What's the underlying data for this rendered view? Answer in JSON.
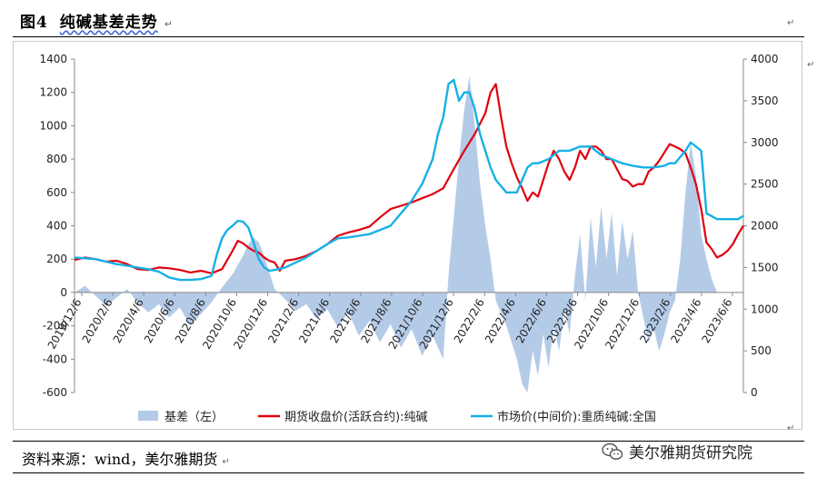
{
  "page": {
    "title_prefix": "图4",
    "title_main": "纯碱基差走势",
    "source": "资料来源：wind，美尔雅期货",
    "watermark": "美尔雅期货研究院",
    "pilcrow": "↵"
  },
  "chart_data": {
    "type": "area+line",
    "title": "",
    "x_ticks": [
      "2019/12/6",
      "2020/2/6",
      "2020/4/6",
      "2020/6/6",
      "2020/8/6",
      "2020/10/6",
      "2020/12/6",
      "2021/2/6",
      "2021/4/6",
      "2021/6/6",
      "2021/8/6",
      "2021/10/6",
      "2021/12/6",
      "2022/2/6",
      "2022/4/6",
      "2022/6/6",
      "2022/8/6",
      "2022/10/6",
      "2022/12/6",
      "2023/2/6",
      "2023/4/6",
      "2023/6/6"
    ],
    "y_left": {
      "min": -600,
      "max": 1400,
      "step": 200
    },
    "y_right": {
      "min": 0,
      "max": 4000,
      "step": 500
    },
    "legend": {
      "position": "bottom"
    },
    "colors": {
      "basis": "#b4cbe8",
      "futures": "#e0000f",
      "spot": "#17b0e6"
    },
    "series": [
      {
        "name": "基差（左）",
        "axis": "left",
        "kind": "area",
        "values": [
          [
            0,
            0
          ],
          [
            2,
            40
          ],
          [
            4,
            -20
          ],
          [
            6,
            -80
          ],
          [
            8,
            -30
          ],
          [
            10,
            20
          ],
          [
            12,
            -60
          ],
          [
            14,
            -120
          ],
          [
            16,
            -70
          ],
          [
            18,
            -150
          ],
          [
            20,
            -90
          ],
          [
            22,
            -200
          ],
          [
            24,
            -130
          ],
          [
            26,
            -60
          ],
          [
            28,
            30
          ],
          [
            30,
            110
          ],
          [
            32,
            220
          ],
          [
            33,
            290
          ],
          [
            34,
            330
          ],
          [
            35,
            300
          ],
          [
            36,
            220
          ],
          [
            37,
            120
          ],
          [
            38,
            20
          ],
          [
            40,
            -40
          ],
          [
            42,
            -110
          ],
          [
            44,
            -70
          ],
          [
            46,
            -160
          ],
          [
            48,
            -100
          ],
          [
            50,
            -210
          ],
          [
            52,
            -120
          ],
          [
            54,
            -260
          ],
          [
            56,
            -170
          ],
          [
            58,
            -300
          ],
          [
            60,
            -190
          ],
          [
            62,
            -330
          ],
          [
            64,
            -220
          ],
          [
            66,
            -380
          ],
          [
            68,
            -260
          ],
          [
            70,
            -400
          ],
          [
            71,
            100
          ],
          [
            72,
            450
          ],
          [
            73,
            800
          ],
          [
            74,
            1100
          ],
          [
            75,
            1300
          ],
          [
            76,
            1000
          ],
          [
            77,
            650
          ],
          [
            78,
            400
          ],
          [
            79,
            200
          ],
          [
            80,
            -50
          ],
          [
            82,
            -200
          ],
          [
            84,
            -400
          ],
          [
            85,
            -550
          ],
          [
            86,
            -600
          ],
          [
            87,
            -350
          ],
          [
            88,
            -500
          ],
          [
            89,
            -250
          ],
          [
            90,
            -450
          ],
          [
            91,
            -200
          ],
          [
            92,
            -350
          ],
          [
            93,
            -100
          ],
          [
            94,
            -250
          ],
          [
            95,
            100
          ],
          [
            96,
            350
          ],
          [
            97,
            -50
          ],
          [
            98,
            450
          ],
          [
            99,
            150
          ],
          [
            100,
            520
          ],
          [
            101,
            200
          ],
          [
            102,
            480
          ],
          [
            103,
            100
          ],
          [
            104,
            430
          ],
          [
            105,
            200
          ],
          [
            106,
            370
          ],
          [
            107,
            0
          ],
          [
            108,
            -150
          ],
          [
            109,
            -300
          ],
          [
            110,
            -220
          ],
          [
            111,
            -350
          ],
          [
            112,
            -250
          ],
          [
            113,
            -120
          ],
          [
            114,
            -50
          ],
          [
            115,
            200
          ],
          [
            116,
            600
          ],
          [
            117,
            900
          ],
          [
            118,
            700
          ],
          [
            119,
            350
          ],
          [
            120,
            200
          ],
          [
            121,
            80
          ],
          [
            122,
            0
          ]
        ]
      },
      {
        "name": "期货收盘价(活跃合约):纯碱",
        "axis": "right",
        "kind": "line",
        "values": [
          [
            0,
            1590
          ],
          [
            2,
            1620
          ],
          [
            4,
            1600
          ],
          [
            6,
            1570
          ],
          [
            8,
            1580
          ],
          [
            10,
            1540
          ],
          [
            12,
            1480
          ],
          [
            14,
            1470
          ],
          [
            16,
            1500
          ],
          [
            18,
            1490
          ],
          [
            20,
            1470
          ],
          [
            22,
            1440
          ],
          [
            24,
            1460
          ],
          [
            26,
            1430
          ],
          [
            28,
            1480
          ],
          [
            30,
            1700
          ],
          [
            31,
            1820
          ],
          [
            32,
            1790
          ],
          [
            33,
            1740
          ],
          [
            34,
            1700
          ],
          [
            35,
            1680
          ],
          [
            36,
            1620
          ],
          [
            37,
            1580
          ],
          [
            38,
            1560
          ],
          [
            39,
            1460
          ],
          [
            40,
            1580
          ],
          [
            42,
            1600
          ],
          [
            44,
            1640
          ],
          [
            46,
            1700
          ],
          [
            48,
            1780
          ],
          [
            50,
            1880
          ],
          [
            52,
            1920
          ],
          [
            54,
            1950
          ],
          [
            56,
            1990
          ],
          [
            58,
            2100
          ],
          [
            60,
            2200
          ],
          [
            62,
            2240
          ],
          [
            64,
            2280
          ],
          [
            66,
            2330
          ],
          [
            68,
            2380
          ],
          [
            70,
            2450
          ],
          [
            72,
            2680
          ],
          [
            74,
            2900
          ],
          [
            76,
            3100
          ],
          [
            78,
            3350
          ],
          [
            79,
            3600
          ],
          [
            80,
            3700
          ],
          [
            81,
            3300
          ],
          [
            82,
            2950
          ],
          [
            83,
            2750
          ],
          [
            84,
            2580
          ],
          [
            85,
            2450
          ],
          [
            86,
            2300
          ],
          [
            87,
            2400
          ],
          [
            88,
            2350
          ],
          [
            89,
            2550
          ],
          [
            90,
            2750
          ],
          [
            91,
            2900
          ],
          [
            92,
            2800
          ],
          [
            93,
            2650
          ],
          [
            94,
            2550
          ],
          [
            95,
            2700
          ],
          [
            96,
            2900
          ],
          [
            97,
            2800
          ],
          [
            98,
            2950
          ],
          [
            99,
            2950
          ],
          [
            100,
            2900
          ],
          [
            101,
            2800
          ],
          [
            102,
            2800
          ],
          [
            103,
            2680
          ],
          [
            104,
            2560
          ],
          [
            105,
            2540
          ],
          [
            106,
            2470
          ],
          [
            107,
            2500
          ],
          [
            108,
            2500
          ],
          [
            109,
            2650
          ],
          [
            110,
            2700
          ],
          [
            111,
            2780
          ],
          [
            112,
            2880
          ],
          [
            113,
            2980
          ],
          [
            114,
            2950
          ],
          [
            115,
            2920
          ],
          [
            116,
            2870
          ],
          [
            117,
            2700
          ],
          [
            118,
            2500
          ],
          [
            119,
            2200
          ],
          [
            120,
            1800
          ],
          [
            121,
            1720
          ],
          [
            122,
            1620
          ],
          [
            123,
            1650
          ],
          [
            124,
            1700
          ],
          [
            125,
            1780
          ],
          [
            126,
            1900
          ],
          [
            127,
            2000
          ]
        ]
      },
      {
        "name": "市场价(中间价):重质纯碱:全国",
        "axis": "right",
        "kind": "line",
        "values": [
          [
            0,
            1620
          ],
          [
            2,
            1610
          ],
          [
            4,
            1600
          ],
          [
            6,
            1570
          ],
          [
            8,
            1540
          ],
          [
            10,
            1520
          ],
          [
            12,
            1500
          ],
          [
            14,
            1480
          ],
          [
            16,
            1450
          ],
          [
            18,
            1380
          ],
          [
            20,
            1350
          ],
          [
            22,
            1350
          ],
          [
            24,
            1360
          ],
          [
            26,
            1400
          ],
          [
            27,
            1650
          ],
          [
            28,
            1850
          ],
          [
            29,
            1950
          ],
          [
            30,
            2000
          ],
          [
            31,
            2060
          ],
          [
            32,
            2050
          ],
          [
            33,
            1980
          ],
          [
            34,
            1800
          ],
          [
            35,
            1600
          ],
          [
            36,
            1500
          ],
          [
            37,
            1460
          ],
          [
            38,
            1470
          ],
          [
            40,
            1500
          ],
          [
            42,
            1560
          ],
          [
            44,
            1620
          ],
          [
            46,
            1700
          ],
          [
            48,
            1780
          ],
          [
            50,
            1850
          ],
          [
            52,
            1860
          ],
          [
            54,
            1880
          ],
          [
            56,
            1900
          ],
          [
            58,
            1950
          ],
          [
            60,
            2000
          ],
          [
            62,
            2150
          ],
          [
            64,
            2300
          ],
          [
            66,
            2500
          ],
          [
            68,
            2800
          ],
          [
            69,
            3100
          ],
          [
            70,
            3300
          ],
          [
            71,
            3700
          ],
          [
            72,
            3750
          ],
          [
            73,
            3500
          ],
          [
            74,
            3600
          ],
          [
            75,
            3600
          ],
          [
            76,
            3400
          ],
          [
            77,
            3100
          ],
          [
            78,
            2900
          ],
          [
            79,
            2700
          ],
          [
            80,
            2550
          ],
          [
            82,
            2400
          ],
          [
            84,
            2400
          ],
          [
            85,
            2550
          ],
          [
            86,
            2700
          ],
          [
            87,
            2750
          ],
          [
            88,
            2750
          ],
          [
            90,
            2800
          ],
          [
            92,
            2900
          ],
          [
            94,
            2900
          ],
          [
            96,
            2950
          ],
          [
            98,
            2950
          ],
          [
            100,
            2850
          ],
          [
            102,
            2800
          ],
          [
            104,
            2750
          ],
          [
            106,
            2720
          ],
          [
            108,
            2700
          ],
          [
            110,
            2700
          ],
          [
            112,
            2720
          ],
          [
            113,
            2750
          ],
          [
            114,
            2750
          ],
          [
            116,
            2900
          ],
          [
            117,
            3000
          ],
          [
            118,
            2950
          ],
          [
            119,
            2900
          ],
          [
            120,
            2150
          ],
          [
            122,
            2080
          ],
          [
            124,
            2080
          ],
          [
            126,
            2080
          ],
          [
            127,
            2120
          ]
        ]
      }
    ]
  }
}
